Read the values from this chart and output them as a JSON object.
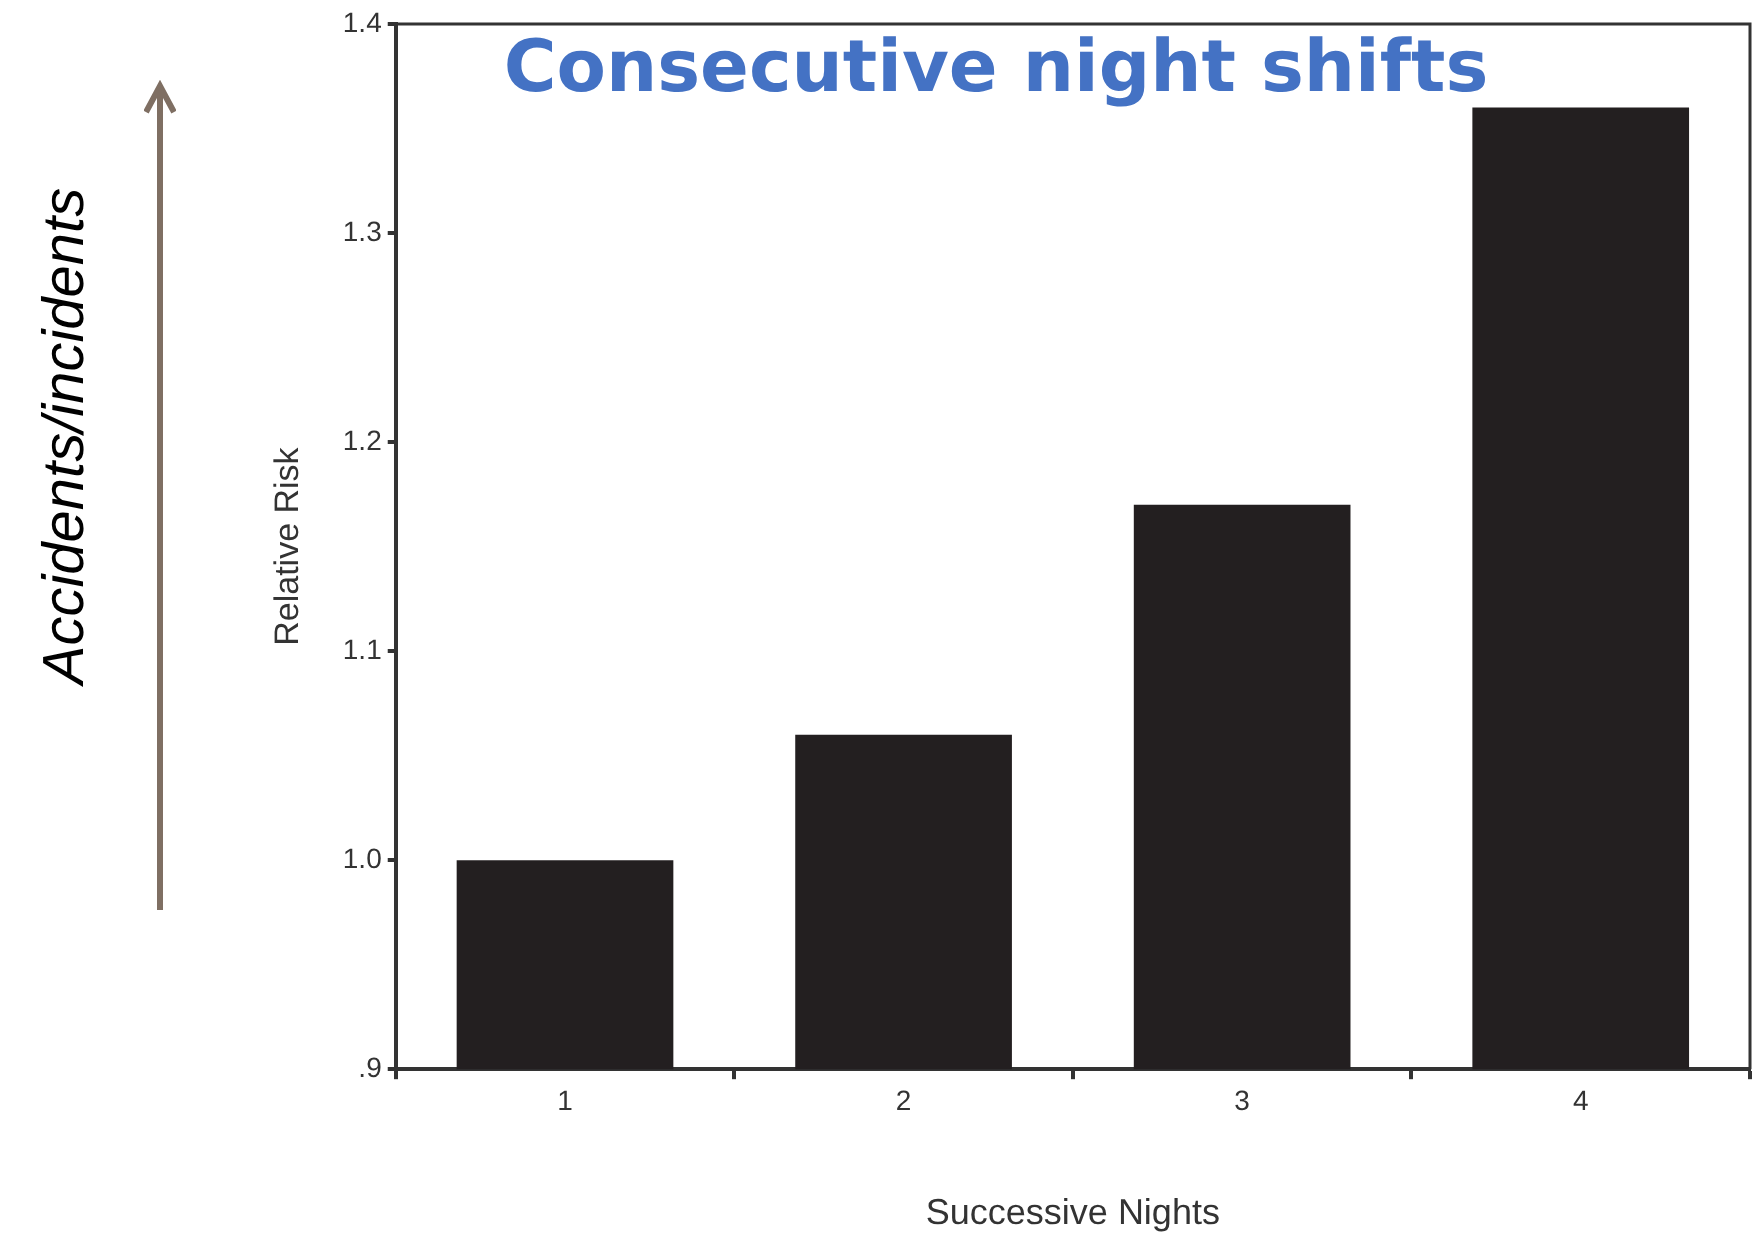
{
  "chart_data": {
    "type": "bar",
    "title": "Consecutive night shifts",
    "xlabel": "Successive Nights",
    "ylabel": "Relative Risk",
    "annotations": [
      "Accidents/incidents"
    ],
    "categories": [
      "1",
      "2",
      "3",
      "4"
    ],
    "values": [
      1.0,
      1.06,
      1.17,
      1.36
    ],
    "color": "#231f20",
    "ylim": [
      0.9,
      1.4
    ],
    "yticks": [
      {
        "value": 0.9,
        "label": ".9"
      },
      {
        "value": 1.0,
        "label": "1.0"
      },
      {
        "value": 1.1,
        "label": "1.1"
      },
      {
        "value": 1.2,
        "label": "1.2"
      },
      {
        "value": 1.3,
        "label": "1.3"
      },
      {
        "value": 1.4,
        "label": "1.4"
      }
    ],
    "grid": false,
    "legend": false
  }
}
